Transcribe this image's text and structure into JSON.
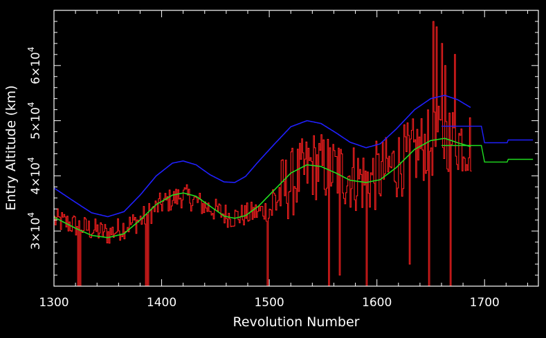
{
  "chart_data": {
    "type": "line",
    "xlabel": "Revolution Number",
    "ylabel": "Entry Altitude (km)",
    "xlim": [
      1300,
      1750
    ],
    "ylim": [
      20000,
      70000
    ],
    "log_y": false,
    "grid": false,
    "legend": "none",
    "background": "#000000",
    "x_ticks": [
      {
        "value": 1300,
        "label": "1300"
      },
      {
        "value": 1400,
        "label": "1400"
      },
      {
        "value": 1500,
        "label": "1500"
      },
      {
        "value": 1600,
        "label": "1600"
      },
      {
        "value": 1700,
        "label": "1700"
      }
    ],
    "y_ticks": [
      {
        "value": 30000,
        "mantissa": "3",
        "times": "×",
        "base": "10",
        "exp": "4"
      },
      {
        "value": 40000,
        "mantissa": "4",
        "times": "×",
        "base": "10",
        "exp": "4"
      },
      {
        "value": 50000,
        "mantissa": "5",
        "times": "×",
        "base": "10",
        "exp": "4"
      },
      {
        "value": 60000,
        "mantissa": "6",
        "times": "×",
        "base": "10",
        "exp": "4"
      }
    ],
    "series": [
      {
        "color": "#ff2020",
        "style": "histogram",
        "x_range": [
          1300,
          1687
        ],
        "mean_curve_points": [
          [
            1300,
            32000
          ],
          [
            1320,
            31000
          ],
          [
            1350,
            29500
          ],
          [
            1380,
            32000
          ],
          [
            1400,
            35000
          ],
          [
            1420,
            36500
          ],
          [
            1440,
            34500
          ],
          [
            1465,
            32500
          ],
          [
            1480,
            33000
          ],
          [
            1500,
            34000
          ],
          [
            1510,
            37000
          ],
          [
            1540,
            42000
          ],
          [
            1560,
            41000
          ],
          [
            1590,
            39000
          ],
          [
            1610,
            41000
          ],
          [
            1640,
            45000
          ],
          [
            1665,
            47000
          ],
          [
            1687,
            46000
          ]
        ],
        "scatter_small": 2200,
        "scatter_large": 6500,
        "spikes": [
          [
            1322,
            19000
          ],
          [
            1324,
            19500
          ],
          [
            1385,
            15000
          ],
          [
            1387,
            14000
          ],
          [
            1498,
            19000
          ],
          [
            1555,
            19000
          ],
          [
            1565,
            22000
          ],
          [
            1590,
            19000
          ],
          [
            1630,
            24000
          ],
          [
            1648,
            12000
          ],
          [
            1652,
            68000
          ],
          [
            1655,
            67000
          ],
          [
            1660,
            64000
          ],
          [
            1663,
            60000
          ],
          [
            1668,
            18000
          ],
          [
            1672,
            62000
          ]
        ]
      },
      {
        "color": "#20e020",
        "style": "line",
        "points": [
          [
            1300,
            32500
          ],
          [
            1320,
            30500
          ],
          [
            1335,
            29200
          ],
          [
            1350,
            28800
          ],
          [
            1365,
            29500
          ],
          [
            1380,
            32000
          ],
          [
            1395,
            34800
          ],
          [
            1410,
            36500
          ],
          [
            1420,
            36900
          ],
          [
            1432,
            36300
          ],
          [
            1445,
            34500
          ],
          [
            1458,
            32700
          ],
          [
            1468,
            32300
          ],
          [
            1478,
            32800
          ],
          [
            1490,
            34500
          ],
          [
            1505,
            37500
          ],
          [
            1520,
            40500
          ],
          [
            1535,
            42000
          ],
          [
            1548,
            41700
          ],
          [
            1562,
            40500
          ],
          [
            1575,
            39200
          ],
          [
            1590,
            38800
          ],
          [
            1603,
            39300
          ],
          [
            1618,
            41500
          ],
          [
            1635,
            44800
          ],
          [
            1650,
            46400
          ],
          [
            1663,
            46800
          ],
          [
            1675,
            46000
          ],
          [
            1687,
            45300
          ]
        ]
      },
      {
        "color": "#2020ff",
        "style": "line",
        "points": [
          [
            1300,
            37800
          ],
          [
            1320,
            35200
          ],
          [
            1335,
            33300
          ],
          [
            1350,
            32600
          ],
          [
            1365,
            33500
          ],
          [
            1380,
            36500
          ],
          [
            1395,
            40000
          ],
          [
            1410,
            42300
          ],
          [
            1420,
            42700
          ],
          [
            1432,
            42000
          ],
          [
            1445,
            40200
          ],
          [
            1458,
            38900
          ],
          [
            1468,
            38800
          ],
          [
            1478,
            39900
          ],
          [
            1490,
            42600
          ],
          [
            1505,
            45800
          ],
          [
            1520,
            48900
          ],
          [
            1535,
            50000
          ],
          [
            1548,
            49500
          ],
          [
            1562,
            47800
          ],
          [
            1575,
            46100
          ],
          [
            1590,
            45100
          ],
          [
            1603,
            45800
          ],
          [
            1618,
            48500
          ],
          [
            1635,
            52000
          ],
          [
            1650,
            54000
          ],
          [
            1663,
            54600
          ],
          [
            1675,
            53800
          ],
          [
            1687,
            52400
          ]
        ]
      },
      {
        "color": "#2020ff",
        "style": "step",
        "points": [
          [
            1660,
            49000
          ],
          [
            1697,
            49000
          ],
          [
            1700,
            46000
          ],
          [
            1721,
            46000
          ],
          [
            1722,
            46500
          ],
          [
            1745,
            46500
          ]
        ]
      },
      {
        "color": "#20e020",
        "style": "step",
        "points": [
          [
            1660,
            45500
          ],
          [
            1697,
            45500
          ],
          [
            1700,
            42500
          ],
          [
            1721,
            42500
          ],
          [
            1722,
            43000
          ],
          [
            1745,
            43000
          ]
        ]
      }
    ]
  }
}
